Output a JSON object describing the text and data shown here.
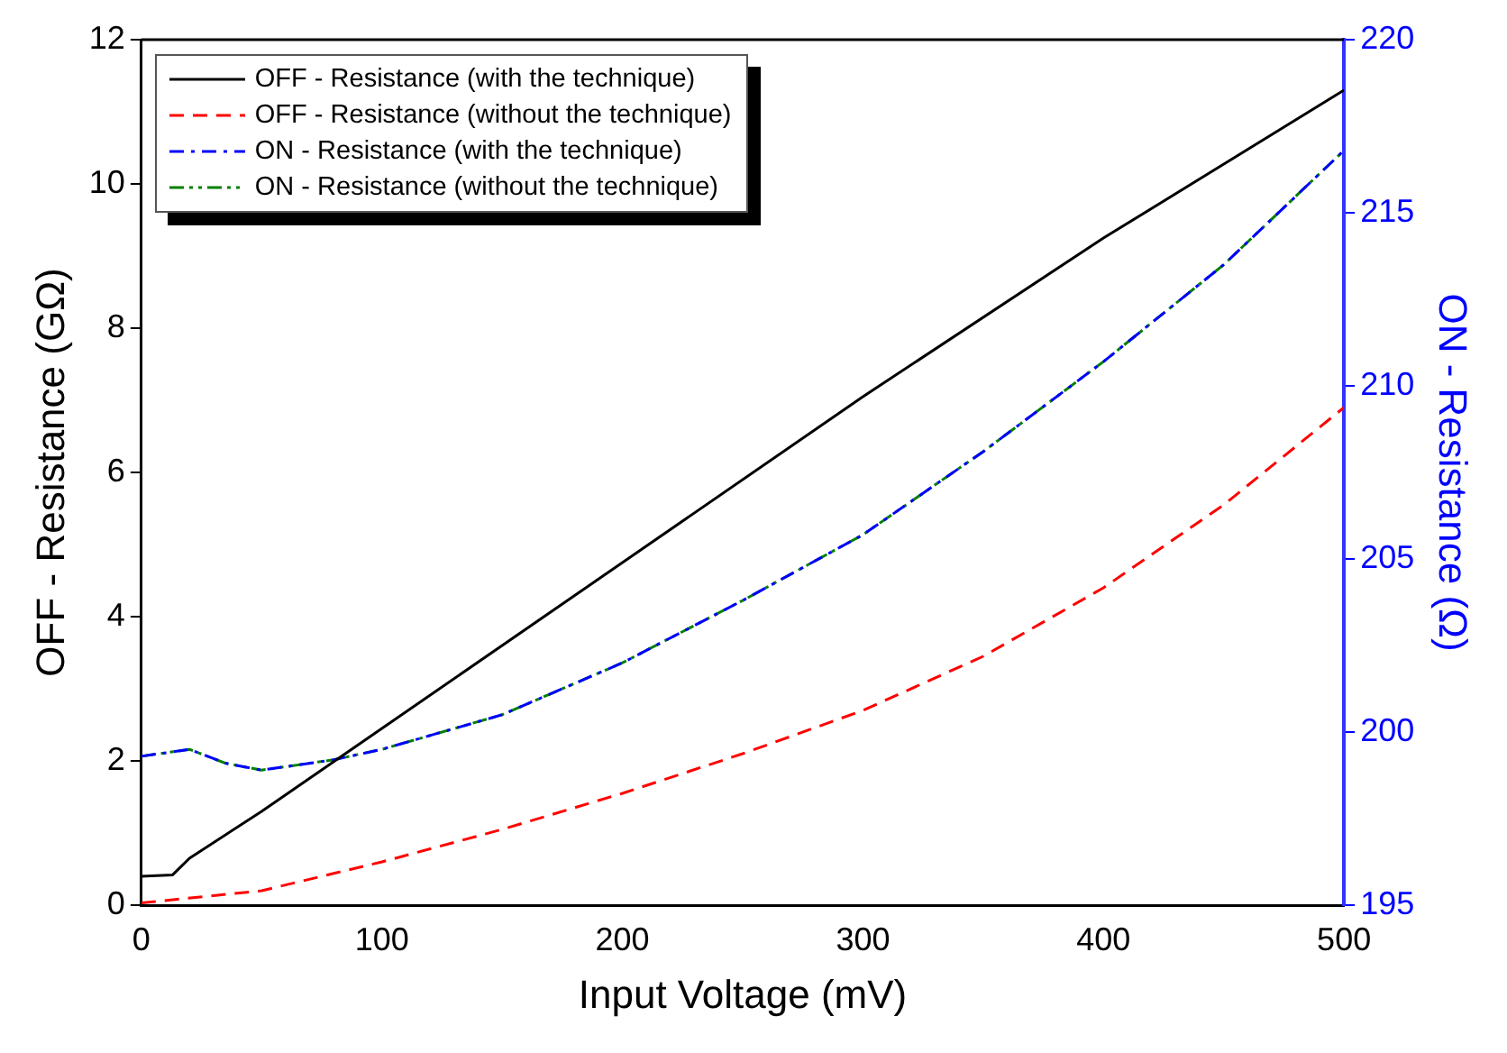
{
  "chart_data": {
    "type": "line",
    "xlabel": "Input Voltage (mV)",
    "ylabel": "OFF - Resistance (GΩ)",
    "y2label": "ON - Resistance (Ω)",
    "xlim": [
      0,
      500
    ],
    "xticks": [
      0,
      100,
      200,
      300,
      400,
      500
    ],
    "ylim": [
      0,
      12
    ],
    "yticks": [
      0,
      2,
      4,
      6,
      8,
      10,
      12
    ],
    "y2lim": [
      195,
      220
    ],
    "y2ticks": [
      195,
      200,
      205,
      210,
      215,
      220
    ],
    "legend": "top left",
    "grid": false,
    "marker": "none",
    "series": [
      {
        "name": "OFF - Resistance (with the technique)",
        "color": "#000000",
        "line_style": "solid",
        "x": [
          0,
          13,
          20,
          50,
          100,
          200,
          300,
          400,
          500
        ],
        "values": [
          0.4,
          0.42,
          0.65,
          1.3,
          2.45,
          4.75,
          7.05,
          9.25,
          11.3
        ]
      },
      {
        "name": "OFF - Resistance (without the technique)",
        "color": "#ff0000",
        "line_style": "dashed",
        "x": [
          0,
          50,
          100,
          150,
          200,
          250,
          300,
          350,
          400,
          450,
          500
        ],
        "values": [
          0.03,
          0.2,
          0.6,
          1.05,
          1.55,
          2.1,
          2.7,
          3.45,
          4.4,
          5.55,
          6.9
        ]
      },
      {
        "name": "ON - Resistance (with the technique)",
        "color": "#0000ff",
        "line_style": "dashdot",
        "axis": "y2",
        "x": [
          0,
          20,
          35,
          50,
          80,
          100,
          150,
          200,
          250,
          300,
          350,
          400,
          450,
          500
        ],
        "values": [
          199.3,
          199.5,
          199.1,
          198.9,
          199.2,
          199.5,
          200.5,
          202.0,
          203.8,
          205.7,
          208.1,
          210.7,
          213.5,
          216.8
        ]
      },
      {
        "name": "ON - Resistance (without the technique)",
        "color": "#008000",
        "line_style": "dashdotdot",
        "axis": "y2",
        "x": [
          0,
          20,
          35,
          50,
          80,
          100,
          150,
          200,
          250,
          300,
          350,
          400,
          450,
          500
        ],
        "values": [
          199.3,
          199.5,
          199.1,
          198.9,
          199.2,
          199.5,
          200.5,
          202.0,
          203.8,
          205.7,
          208.1,
          210.7,
          213.5,
          216.8
        ]
      }
    ]
  }
}
